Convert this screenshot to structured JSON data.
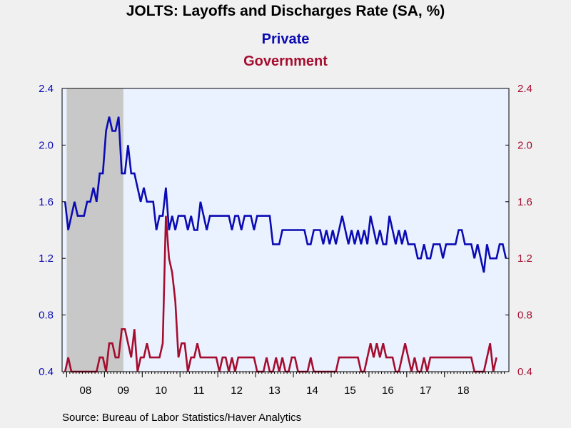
{
  "chart_data": {
    "type": "line",
    "title": "JOLTS: Layoffs and Discharges Rate (SA, %)",
    "source": "Source:  Bureau of Labor Statistics/Haver Analytics",
    "x_start": "2007-12",
    "x_tick_labels": [
      "08",
      "09",
      "10",
      "11",
      "12",
      "13",
      "14",
      "15",
      "16",
      "17",
      "18"
    ],
    "ylim": [
      0.4,
      2.4
    ],
    "y_ticks": [
      "0.4",
      "0.8",
      "1.2",
      "1.6",
      "2.0",
      "2.4"
    ],
    "recession": {
      "start": "2008-01",
      "end": "2009-06"
    },
    "grid": false,
    "colors": {
      "private": "#0b0bb3",
      "government": "#a50d2f",
      "plot_bg": "#eaf2ff",
      "recession": "#c8c8c8"
    },
    "series": [
      {
        "name": "Private",
        "axis": "left",
        "values": [
          1.6,
          1.4,
          1.5,
          1.6,
          1.5,
          1.5,
          1.5,
          1.6,
          1.6,
          1.7,
          1.6,
          1.8,
          1.8,
          2.1,
          2.2,
          2.1,
          2.1,
          2.2,
          1.8,
          1.8,
          2.0,
          1.8,
          1.8,
          1.7,
          1.6,
          1.7,
          1.6,
          1.6,
          1.6,
          1.4,
          1.5,
          1.5,
          1.7,
          1.4,
          1.5,
          1.4,
          1.5,
          1.5,
          1.5,
          1.4,
          1.5,
          1.4,
          1.4,
          1.6,
          1.5,
          1.4,
          1.5,
          1.5,
          1.5,
          1.5,
          1.5,
          1.5,
          1.5,
          1.4,
          1.5,
          1.5,
          1.4,
          1.5,
          1.5,
          1.5,
          1.4,
          1.5,
          1.5,
          1.5,
          1.5,
          1.5,
          1.3,
          1.3,
          1.3,
          1.4,
          1.4,
          1.4,
          1.4,
          1.4,
          1.4,
          1.4,
          1.4,
          1.3,
          1.3,
          1.4,
          1.4,
          1.4,
          1.3,
          1.4,
          1.3,
          1.4,
          1.3,
          1.4,
          1.5,
          1.4,
          1.3,
          1.4,
          1.3,
          1.4,
          1.3,
          1.4,
          1.3,
          1.5,
          1.4,
          1.3,
          1.4,
          1.3,
          1.3,
          1.5,
          1.4,
          1.3,
          1.4,
          1.3,
          1.4,
          1.3,
          1.3,
          1.3,
          1.2,
          1.2,
          1.3,
          1.2,
          1.2,
          1.3,
          1.3,
          1.3,
          1.2,
          1.3,
          1.3,
          1.3,
          1.3,
          1.4,
          1.4,
          1.3,
          1.3,
          1.3,
          1.2,
          1.3,
          1.2,
          1.1,
          1.3,
          1.2,
          1.2,
          1.2,
          1.3,
          1.3,
          1.2
        ]
      },
      {
        "name": "Government",
        "axis": "right",
        "values": [
          0.4,
          0.5,
          0.4,
          0.4,
          0.4,
          0.4,
          0.4,
          0.4,
          0.4,
          0.4,
          0.4,
          0.5,
          0.5,
          0.4,
          0.6,
          0.6,
          0.5,
          0.5,
          0.7,
          0.7,
          0.6,
          0.5,
          0.7,
          0.4,
          0.5,
          0.5,
          0.6,
          0.5,
          0.5,
          0.5,
          0.5,
          0.6,
          1.5,
          1.2,
          1.1,
          0.9,
          0.5,
          0.6,
          0.6,
          0.4,
          0.5,
          0.5,
          0.6,
          0.5,
          0.5,
          0.5,
          0.5,
          0.5,
          0.5,
          0.4,
          0.5,
          0.5,
          0.4,
          0.5,
          0.4,
          0.5,
          0.5,
          0.5,
          0.5,
          0.5,
          0.5,
          0.4,
          0.4,
          0.4,
          0.5,
          0.4,
          0.4,
          0.5,
          0.4,
          0.5,
          0.4,
          0.4,
          0.5,
          0.5,
          0.4,
          0.4,
          0.4,
          0.4,
          0.5,
          0.4,
          0.4,
          0.4,
          0.4,
          0.4,
          0.4,
          0.4,
          0.4,
          0.5,
          0.5,
          0.5,
          0.5,
          0.5,
          0.5,
          0.5,
          0.4,
          0.4,
          0.5,
          0.6,
          0.5,
          0.6,
          0.5,
          0.6,
          0.5,
          0.5,
          0.5,
          0.4,
          0.4,
          0.5,
          0.6,
          0.5,
          0.4,
          0.5,
          0.4,
          0.4,
          0.5,
          0.4,
          0.5,
          0.5,
          0.5,
          0.5,
          0.5,
          0.5,
          0.5,
          0.5,
          0.5,
          0.5,
          0.5,
          0.5,
          0.5,
          0.5,
          0.4,
          0.4,
          0.4,
          0.4,
          0.5,
          0.6,
          0.4,
          0.5
        ]
      }
    ]
  }
}
